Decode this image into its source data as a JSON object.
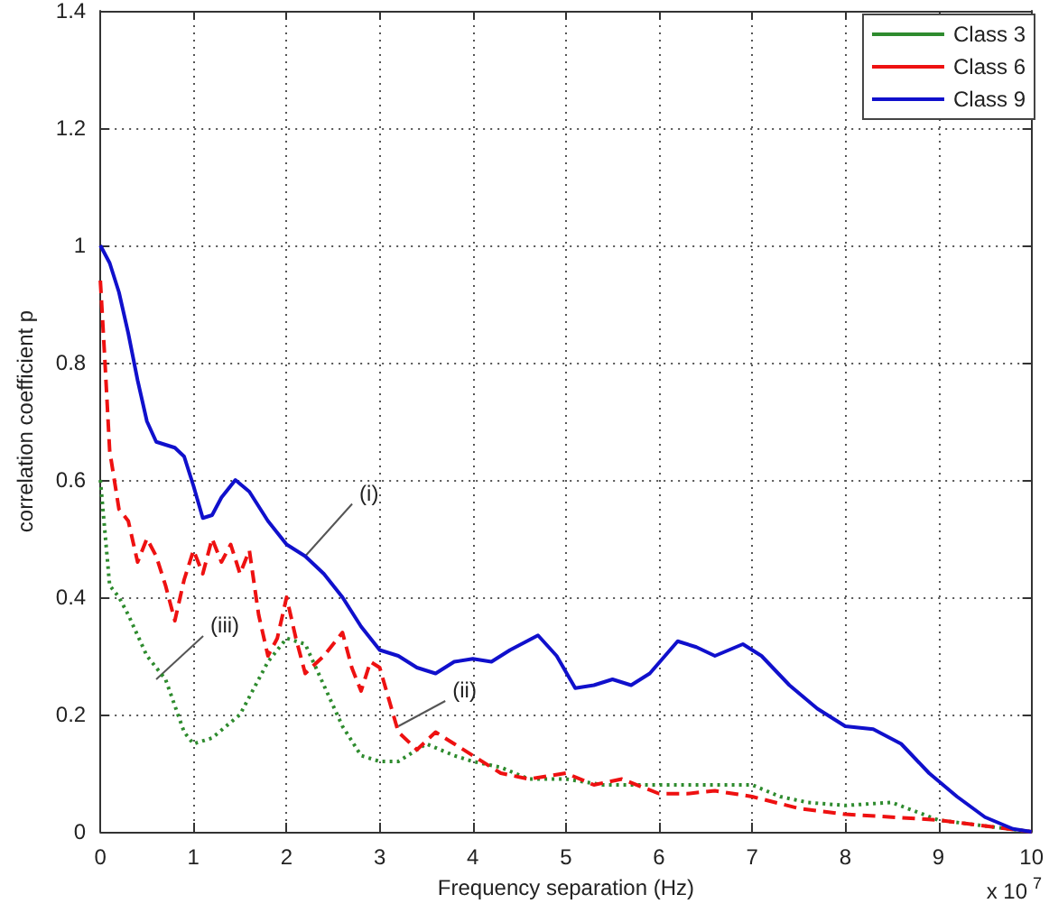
{
  "chart_data": {
    "type": "line",
    "xlabel": "Frequency separation (Hz)",
    "ylabel": "correlation coefficient p",
    "xlim": [
      0,
      10
    ],
    "xticks": [
      0,
      1,
      2,
      3,
      4,
      5,
      6,
      7,
      8,
      9,
      10
    ],
    "ylim": [
      0,
      1.4
    ],
    "yticks": [
      0,
      0.2,
      0.4,
      0.6,
      0.8,
      1,
      1.2,
      1.4
    ],
    "grid": true,
    "legend": "top right",
    "marker": "none",
    "annotations": [
      {
        "text": "(i)",
        "x": 2.2,
        "y": 0.47
      },
      {
        "text": "(ii)",
        "x": 3.2,
        "y": 0.18
      },
      {
        "text": "(iii)",
        "x": 0.6,
        "y": 0.26
      },
      "x 10$^{7}$"
    ],
    "series": [
      {
        "name": "Class 3",
        "color": "#2e8b2e",
        "line_style": "dotted",
        "x": [
          0,
          0.1,
          0.2,
          0.3,
          0.5,
          0.7,
          0.9,
          1.0,
          1.2,
          1.5,
          1.8,
          2.0,
          2.2,
          2.4,
          2.6,
          2.8,
          3.0,
          3.2,
          3.5,
          3.8,
          4.0,
          4.3,
          4.6,
          5.0,
          5.4,
          5.8,
          6.2,
          6.6,
          7.0,
          7.3,
          7.6,
          8.0,
          8.5,
          9.0,
          9.5,
          10
        ],
        "values": [
          0.6,
          0.42,
          0.4,
          0.37,
          0.3,
          0.26,
          0.17,
          0.15,
          0.16,
          0.2,
          0.29,
          0.33,
          0.32,
          0.25,
          0.18,
          0.13,
          0.12,
          0.12,
          0.15,
          0.13,
          0.12,
          0.11,
          0.09,
          0.09,
          0.08,
          0.08,
          0.08,
          0.08,
          0.08,
          0.06,
          0.05,
          0.045,
          0.05,
          0.02,
          0.01,
          0
        ]
      },
      {
        "name": "Class 6",
        "color": "#ee1111",
        "line_style": "dashed",
        "x": [
          0,
          0.05,
          0.1,
          0.2,
          0.3,
          0.4,
          0.5,
          0.6,
          0.7,
          0.8,
          0.9,
          1.0,
          1.1,
          1.2,
          1.3,
          1.4,
          1.5,
          1.6,
          1.7,
          1.8,
          1.9,
          2.0,
          2.1,
          2.2,
          2.4,
          2.6,
          2.7,
          2.8,
          2.9,
          3.0,
          3.2,
          3.4,
          3.6,
          3.8,
          4.0,
          4.3,
          4.6,
          5.0,
          5.3,
          5.6,
          6.0,
          6.3,
          6.6,
          7.0,
          7.5,
          8.0,
          8.5,
          9.0,
          9.5,
          10
        ],
        "values": [
          0.94,
          0.8,
          0.65,
          0.55,
          0.53,
          0.46,
          0.5,
          0.47,
          0.42,
          0.36,
          0.43,
          0.48,
          0.44,
          0.5,
          0.46,
          0.49,
          0.44,
          0.48,
          0.37,
          0.3,
          0.33,
          0.4,
          0.33,
          0.27,
          0.3,
          0.34,
          0.28,
          0.24,
          0.29,
          0.28,
          0.17,
          0.14,
          0.17,
          0.15,
          0.13,
          0.1,
          0.09,
          0.1,
          0.08,
          0.09,
          0.065,
          0.065,
          0.07,
          0.06,
          0.04,
          0.03,
          0.025,
          0.02,
          0.01,
          0
        ]
      },
      {
        "name": "Class 9",
        "color": "#1010cc",
        "line_style": "solid",
        "x": [
          0,
          0.1,
          0.2,
          0.3,
          0.4,
          0.5,
          0.6,
          0.8,
          0.9,
          1.0,
          1.1,
          1.2,
          1.3,
          1.45,
          1.6,
          1.8,
          2.0,
          2.2,
          2.4,
          2.6,
          2.8,
          3.0,
          3.2,
          3.4,
          3.6,
          3.8,
          4.0,
          4.2,
          4.4,
          4.7,
          4.9,
          5.1,
          5.3,
          5.5,
          5.7,
          5.9,
          6.2,
          6.4,
          6.6,
          6.9,
          7.1,
          7.4,
          7.7,
          8.0,
          8.3,
          8.6,
          8.9,
          9.2,
          9.5,
          9.8,
          10
        ],
        "values": [
          1.0,
          0.97,
          0.92,
          0.85,
          0.77,
          0.7,
          0.665,
          0.655,
          0.64,
          0.59,
          0.535,
          0.54,
          0.57,
          0.6,
          0.58,
          0.53,
          0.49,
          0.47,
          0.44,
          0.4,
          0.35,
          0.31,
          0.3,
          0.28,
          0.27,
          0.29,
          0.295,
          0.29,
          0.31,
          0.335,
          0.3,
          0.245,
          0.25,
          0.26,
          0.25,
          0.27,
          0.325,
          0.315,
          0.3,
          0.32,
          0.3,
          0.25,
          0.21,
          0.18,
          0.175,
          0.15,
          0.1,
          0.06,
          0.025,
          0.005,
          0
        ]
      }
    ]
  }
}
